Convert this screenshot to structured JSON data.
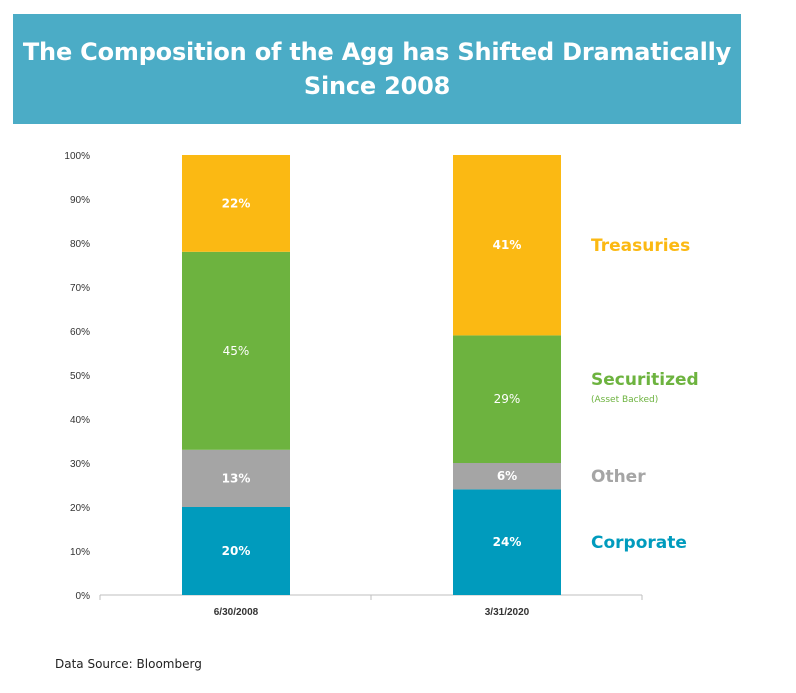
{
  "title": {
    "line1": "The Composition of the Agg has Shifted Dramatically",
    "line2": "Since 2008"
  },
  "source": "Data Source: Bloomberg",
  "chart_data": {
    "type": "bar",
    "stacked": true,
    "categories": [
      "6/30/2008",
      "3/31/2020"
    ],
    "ylim": [
      0,
      100
    ],
    "yticks": [
      "0%",
      "10%",
      "20%",
      "30%",
      "40%",
      "50%",
      "60%",
      "70%",
      "80%",
      "90%",
      "100%"
    ],
    "series": [
      {
        "name": "Corporate",
        "values": [
          20,
          24
        ],
        "labels": [
          "20%",
          "24%"
        ],
        "color": "#009bbd",
        "label_bold": true
      },
      {
        "name": "Other",
        "values": [
          13,
          6
        ],
        "labels": [
          "13%",
          "6%"
        ],
        "color": "#a5a5a5",
        "label_bold": true
      },
      {
        "name": "Securitized",
        "subtitle": "(Asset Backed)",
        "values": [
          45,
          29
        ],
        "labels": [
          "45%",
          "29%"
        ],
        "color": "#6db33f",
        "label_bold": false
      },
      {
        "name": "Treasuries",
        "values": [
          22,
          41
        ],
        "labels": [
          "22%",
          "41%"
        ],
        "color": "#fbb913",
        "label_bold": true
      }
    ],
    "grid": false,
    "legend": "right"
  }
}
